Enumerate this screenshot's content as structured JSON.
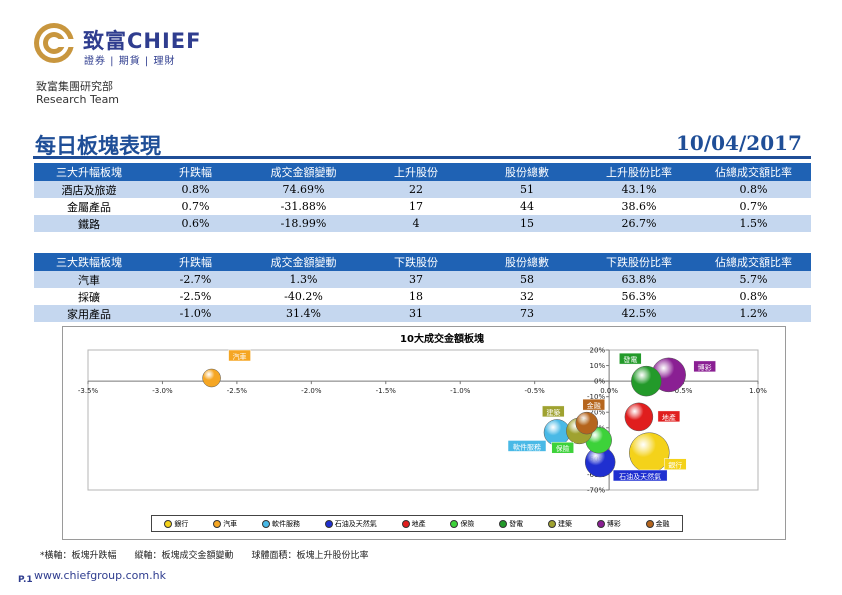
{
  "header": {
    "brand_name": "致富CHIEF",
    "brand_sub": "證券 | 期貨 | 理財",
    "dept_name": "致富集團研究部",
    "dept_sub": "Research Team"
  },
  "report": {
    "title": "每日板塊表現",
    "date": "10/04/2017"
  },
  "rise_table": {
    "headers": [
      "三大升幅板塊",
      "升跌幅",
      "成交金額變動",
      "上升股份",
      "股份總數",
      "上升股份比率",
      "佔總成交額比率"
    ],
    "rows": [
      [
        "酒店及旅遊",
        "0.8%",
        "74.69%",
        "22",
        "51",
        "43.1%",
        "0.8%"
      ],
      [
        "金屬產品",
        "0.7%",
        "-31.88%",
        "17",
        "44",
        "38.6%",
        "0.7%"
      ],
      [
        "鐵路",
        "0.6%",
        "-18.99%",
        "4",
        "15",
        "26.7%",
        "1.5%"
      ]
    ]
  },
  "fall_table": {
    "headers": [
      "三大跌幅板塊",
      "升跌幅",
      "成交金額變動",
      "下跌股份",
      "股份總數",
      "下跌股份比率",
      "佔總成交額比率"
    ],
    "rows": [
      [
        "汽車",
        "-2.7%",
        "1.3%",
        "37",
        "58",
        "63.8%",
        "5.7%"
      ],
      [
        "採礦",
        "-2.5%",
        "-40.2%",
        "18",
        "32",
        "56.3%",
        "0.8%"
      ],
      [
        "家用產品",
        "-1.0%",
        "31.4%",
        "31",
        "73",
        "42.5%",
        "1.2%"
      ]
    ]
  },
  "chart_data": {
    "type": "scatter",
    "title": "10大成交金額板塊",
    "xlabel": "",
    "ylabel": "",
    "xlim": [
      -3.5,
      1.0
    ],
    "ylim": [
      -70,
      20
    ],
    "x_ticks": [
      "-3.5%",
      "-3.0%",
      "-2.5%",
      "-2.0%",
      "-1.5%",
      "-1.0%",
      "-0.5%",
      "0.0%",
      "0.5%",
      "1.0%"
    ],
    "y_ticks": [
      "20%",
      "10%",
      "0%",
      "-10%",
      "-20%",
      "-30%",
      "-40%",
      "-50%",
      "-60%",
      "-70%"
    ],
    "legend_position": "bottom",
    "series": [
      {
        "name": "銀行",
        "x": 0.27,
        "y": -46,
        "size": 20,
        "color": "#f4d21a"
      },
      {
        "name": "汽車",
        "x": -2.67,
        "y": 2,
        "size": 9,
        "color": "#f5a623"
      },
      {
        "name": "軟件服務",
        "x": -0.35,
        "y": -33,
        "size": 13,
        "color": "#49b9e6"
      },
      {
        "name": "石油及天然氣",
        "x": -0.06,
        "y": -52,
        "size": 15,
        "color": "#1f2fd0"
      },
      {
        "name": "地產",
        "x": 0.2,
        "y": -23,
        "size": 14,
        "color": "#e01e1e"
      },
      {
        "name": "保險",
        "x": -0.07,
        "y": -38,
        "size": 13,
        "color": "#3dd23a"
      },
      {
        "name": "發電",
        "x": 0.25,
        "y": 0,
        "size": 15,
        "color": "#239a2a"
      },
      {
        "name": "建築",
        "x": -0.2,
        "y": -32,
        "size": 13,
        "color": "#9fa230"
      },
      {
        "name": "博彩",
        "x": 0.4,
        "y": 4,
        "size": 17,
        "color": "#8a1f93"
      },
      {
        "name": "金融",
        "x": -0.15,
        "y": -27,
        "size": 11,
        "color": "#b5651d"
      }
    ]
  },
  "footnote": "*橫軸：板塊升跌幅　　縱軸：板塊成交金額變動　　球體面積：板塊上升股份比率",
  "footer": {
    "page": "P.1",
    "website": "www.chiefgroup.com.hk"
  }
}
